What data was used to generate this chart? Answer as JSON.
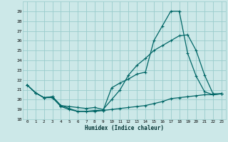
{
  "xlabel": "Humidex (Indice chaleur)",
  "xlim": [
    -0.5,
    23.5
  ],
  "ylim": [
    18,
    30
  ],
  "yticks": [
    18,
    19,
    20,
    21,
    22,
    23,
    24,
    25,
    26,
    27,
    28,
    29
  ],
  "xticks": [
    0,
    1,
    2,
    3,
    4,
    5,
    6,
    7,
    8,
    9,
    10,
    11,
    12,
    13,
    14,
    15,
    16,
    17,
    18,
    19,
    20,
    21,
    22,
    23
  ],
  "bg_color": "#cce8e8",
  "grid_color": "#99cccc",
  "line_color": "#006666",
  "line1_x": [
    0,
    1,
    2,
    3,
    4,
    5,
    6,
    7,
    8,
    9,
    10,
    11,
    12,
    13,
    14,
    15,
    16,
    17,
    18,
    19,
    20,
    21,
    22,
    23
  ],
  "line1_y": [
    21.5,
    20.7,
    20.2,
    20.2,
    19.3,
    19.0,
    18.8,
    18.8,
    18.8,
    18.9,
    19.0,
    19.1,
    19.2,
    19.3,
    19.4,
    19.6,
    19.8,
    20.1,
    20.2,
    20.3,
    20.4,
    20.5,
    20.5,
    20.6
  ],
  "line2_x": [
    0,
    1,
    2,
    3,
    4,
    5,
    6,
    7,
    8,
    9,
    10,
    11,
    12,
    13,
    14,
    15,
    16,
    17,
    18,
    19,
    20,
    21,
    22,
    23
  ],
  "line2_y": [
    21.5,
    20.7,
    20.2,
    20.3,
    19.4,
    19.1,
    18.8,
    18.8,
    18.9,
    18.9,
    21.2,
    21.7,
    22.1,
    22.6,
    22.8,
    26.0,
    27.5,
    29.0,
    29.0,
    24.7,
    22.4,
    20.8,
    20.5,
    20.6
  ],
  "line3_x": [
    0,
    1,
    2,
    3,
    4,
    5,
    6,
    7,
    8,
    9,
    10,
    11,
    12,
    13,
    14,
    15,
    16,
    17,
    18,
    19,
    20,
    21,
    22,
    23
  ],
  "line3_y": [
    21.5,
    20.7,
    20.2,
    20.3,
    19.4,
    19.3,
    19.2,
    19.1,
    19.2,
    19.0,
    20.0,
    21.0,
    22.5,
    23.5,
    24.2,
    25.0,
    25.5,
    26.0,
    26.5,
    26.6,
    25.0,
    22.5,
    20.6,
    20.6
  ]
}
